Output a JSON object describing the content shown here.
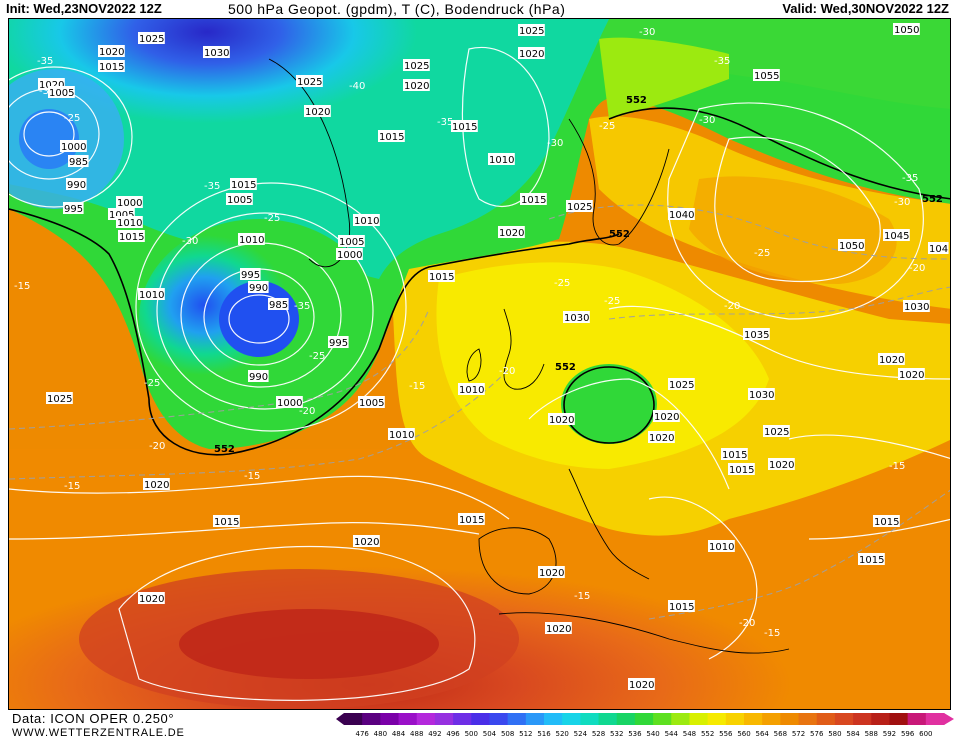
{
  "header": {
    "init": "Init: Wed,23NOV2022 12Z",
    "title": "500 hPa Geopot. (gpdm), T (C), Bodendruck (hPa)",
    "valid": "Valid: Wed,30NOV2022 12Z"
  },
  "footer": {
    "data_source": "Data: ICON OPER 0.250°",
    "website": "WWW.WETTERZENTRALE.DE"
  },
  "legend": {
    "values": [
      "476",
      "480",
      "484",
      "488",
      "492",
      "496",
      "500",
      "504",
      "508",
      "512",
      "516",
      "520",
      "524",
      "528",
      "532",
      "536",
      "540",
      "544",
      "548",
      "552",
      "556",
      "560",
      "564",
      "568",
      "572",
      "576",
      "580",
      "584",
      "588",
      "592",
      "596",
      "600"
    ],
    "colors": [
      "#3a0050",
      "#5a0080",
      "#7a00a8",
      "#9a10c8",
      "#b428dc",
      "#9630e0",
      "#6e2ee6",
      "#4a2ee8",
      "#3a48ee",
      "#3070f4",
      "#2a98f8",
      "#22bcf8",
      "#18d4e8",
      "#10dcc0",
      "#10d890",
      "#18d464",
      "#30d838",
      "#5ee020",
      "#9cea10",
      "#d8f000",
      "#f6ea00",
      "#f8d200",
      "#f8b800",
      "#f4a000",
      "#ee8a00",
      "#e87410",
      "#e05c18",
      "#d84820",
      "#cc3420",
      "#b82018",
      "#a01010",
      "#c81878",
      "#e030a0"
    ]
  },
  "map": {
    "pressure_labels": [
      "1025",
      "1020",
      "1015",
      "1030",
      "1005",
      "1000",
      "985",
      "990",
      "995",
      "1010",
      "1035",
      "1040",
      "1045",
      "1050",
      "1055"
    ],
    "geopotential_labels": [
      "552"
    ],
    "temperature_labels": [
      "-15",
      "-20",
      "-25",
      "-30",
      "-35",
      "-40"
    ],
    "isobars": [
      {
        "label": "1025"
      },
      {
        "label": "1020"
      },
      {
        "label": "1015"
      },
      {
        "label": "1030"
      },
      {
        "label": "1020"
      },
      {
        "label": "1015"
      },
      {
        "label": "1005"
      },
      {
        "label": "1000"
      },
      {
        "label": "985"
      },
      {
        "label": "990"
      },
      {
        "label": "995"
      },
      {
        "label": "1000"
      },
      {
        "label": "1005"
      },
      {
        "label": "1010"
      },
      {
        "label": "1015"
      },
      {
        "label": "1025"
      },
      {
        "label": "1020"
      },
      {
        "label": "1015"
      },
      {
        "label": "1010"
      },
      {
        "label": "1015"
      },
      {
        "label": "1025"
      },
      {
        "label": "1020"
      },
      {
        "label": "1015"
      },
      {
        "label": "1005"
      },
      {
        "label": "1000"
      },
      {
        "label": "995"
      },
      {
        "label": "990"
      },
      {
        "label": "985"
      },
      {
        "label": "995"
      },
      {
        "label": "1000"
      },
      {
        "label": "1005"
      },
      {
        "label": "1010"
      },
      {
        "label": "1015"
      },
      {
        "label": "1010"
      },
      {
        "label": "1015"
      },
      {
        "label": "1020"
      },
      {
        "label": "1025"
      },
      {
        "label": "1030"
      },
      {
        "label": "1040"
      },
      {
        "label": "1050"
      },
      {
        "label": "1055"
      },
      {
        "label": "1045"
      },
      {
        "label": "1035"
      },
      {
        "label": "1030"
      },
      {
        "label": "1025"
      },
      {
        "label": "1020"
      },
      {
        "label": "1020"
      },
      {
        "label": "1015"
      },
      {
        "label": "1010"
      },
      {
        "label": "1015"
      },
      {
        "label": "1020"
      },
      {
        "label": "1020"
      },
      {
        "label": "1020"
      },
      {
        "label": "1020"
      },
      {
        "label": "1025"
      },
      {
        "label": "1015"
      },
      {
        "label": "1020"
      },
      {
        "label": "1015"
      },
      {
        "label": "1015"
      },
      {
        "label": "1030"
      },
      {
        "label": "1020"
      },
      {
        "label": "1020"
      },
      {
        "label": "1025"
      },
      {
        "label": "1030"
      },
      {
        "label": "1015"
      },
      {
        "label": "1010"
      }
    ]
  }
}
